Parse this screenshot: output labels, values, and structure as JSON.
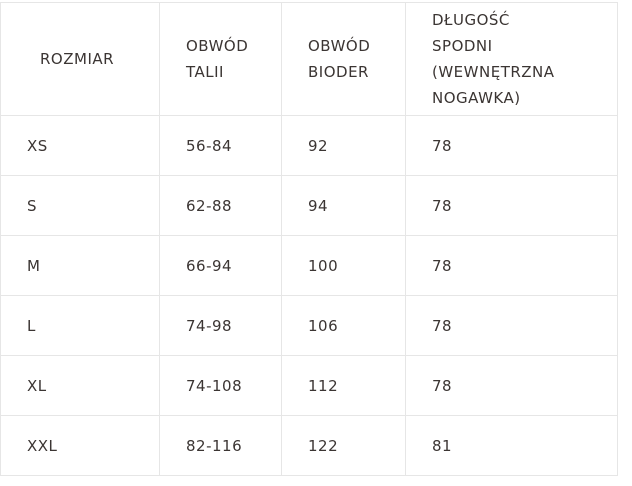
{
  "table": {
    "headers": [
      "ROZMIAR",
      "OBWÓD TALII",
      "OBWÓD BIODER",
      "DŁUGOŚĆ SPODNI (WEWNĘTRZNA NOGAWKA)"
    ],
    "rows": [
      [
        "XS",
        "56-84",
        "92",
        "78"
      ],
      [
        "S",
        "62-88",
        "94",
        "78"
      ],
      [
        "M",
        "66-94",
        "100",
        "78"
      ],
      [
        "L",
        "74-98",
        "106",
        "78"
      ],
      [
        "XL",
        "74-108",
        "112",
        "78"
      ],
      [
        "XXL",
        "82-116",
        "122",
        "81"
      ]
    ]
  }
}
